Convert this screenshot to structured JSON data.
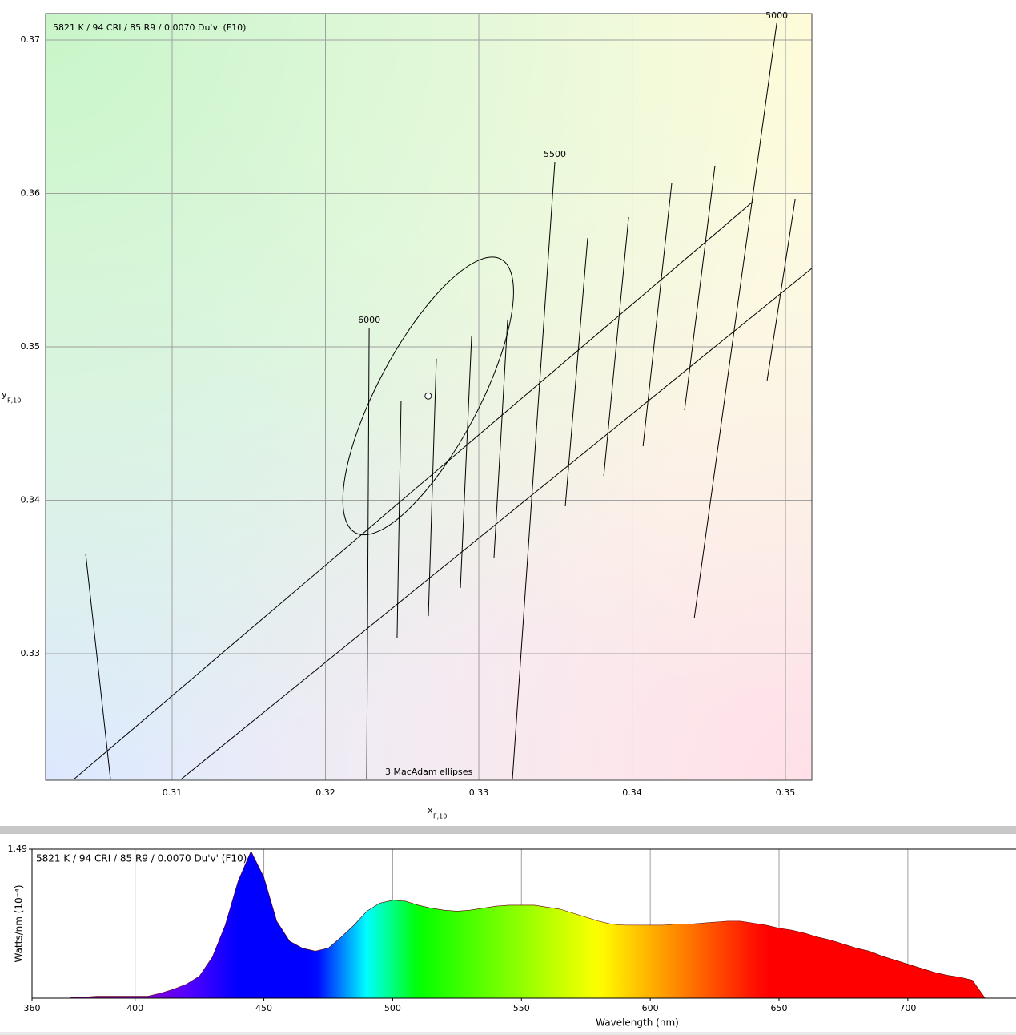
{
  "chart_data": [
    {
      "type": "chromaticity",
      "annotation": "5821 K / 94 CRI / 85 R9 / 0.0070 Du'v' (F10)",
      "ellipse_label": "3  MacAdam ellipses",
      "xlabel": "x",
      "xlabel_sub": "F,10",
      "ylabel": "y",
      "ylabel_sub": "F,10",
      "xlim": [
        0.30175,
        0.35172
      ],
      "ylim": [
        0.32175,
        0.37172
      ],
      "xticks": [
        0.31,
        0.32,
        0.33,
        0.34,
        0.35
      ],
      "yticks": [
        0.33,
        0.34,
        0.35,
        0.36,
        0.37
      ],
      "grid": true,
      "point": {
        "x": 0.3267,
        "y": 0.3468
      },
      "ellipse": {
        "cx": 0.3267,
        "cy": 0.3468,
        "rx": 0.0101,
        "ry": 0.0033,
        "angle": 62
      },
      "isotherms": [
        {
          "x": [
            0.30436,
            0.30598
          ],
          "y": [
            0.33653,
            0.3218
          ]
        },
        {
          "label": "6000",
          "x": [
            0.32285,
            0.32269
          ],
          "y": [
            0.35125,
            0.3218
          ]
        },
        {
          "x": [
            0.32493,
            0.32467
          ],
          "y": [
            0.34645,
            0.33104
          ]
        },
        {
          "x": [
            0.32723,
            0.32671
          ],
          "y": [
            0.34922,
            0.33245
          ]
        },
        {
          "x": [
            0.32953,
            0.3288
          ],
          "y": [
            0.35068,
            0.33428
          ]
        },
        {
          "x": [
            0.33188,
            0.33099
          ],
          "y": [
            0.35178,
            0.33627
          ]
        },
        {
          "label": "5500",
          "x": [
            0.33496,
            0.33219
          ],
          "y": [
            0.36206,
            0.3218
          ]
        },
        {
          "x": [
            0.3371,
            0.33564
          ],
          "y": [
            0.3571,
            0.33961
          ]
        },
        {
          "x": [
            0.33977,
            0.33815
          ],
          "y": [
            0.35846,
            0.34159
          ]
        },
        {
          "x": [
            0.34258,
            0.34071
          ],
          "y": [
            0.36065,
            0.34352
          ]
        },
        {
          "x": [
            0.3454,
            0.34342
          ],
          "y": [
            0.3618,
            0.34587
          ]
        },
        {
          "label": "5000",
          "x": [
            0.34943,
            0.34405
          ],
          "y": [
            0.3711,
            0.3323
          ]
        },
        {
          "x": [
            0.35063,
            0.3488
          ],
          "y": [
            0.35961,
            0.34781
          ]
        }
      ],
      "duv_lines": [
        {
          "x": [
            0.30358,
            0.34786
          ],
          "y": [
            0.3218,
            0.35945
          ]
        },
        {
          "x": [
            0.31057,
            0.35172
          ],
          "y": [
            0.3218,
            0.35512
          ]
        }
      ]
    },
    {
      "type": "spectrum",
      "annotation": "5821 K / 94 CRI / 85 R9 / 0.0070 Du'v' (F10)",
      "xlabel": "Wavelength (nm)",
      "ylabel": "Watts/nm (10⁻⁴)",
      "xlim": [
        360,
        742
      ],
      "ylim": [
        0,
        1.49
      ],
      "xticks": [
        360,
        400,
        450,
        500,
        550,
        600,
        650,
        700
      ],
      "yticks": [
        1.49
      ],
      "grid": true,
      "x": [
        375,
        380,
        385,
        390,
        395,
        400,
        405,
        410,
        415,
        420,
        425,
        430,
        435,
        440,
        445,
        450,
        455,
        460,
        465,
        470,
        475,
        480,
        485,
        490,
        495,
        500,
        505,
        510,
        515,
        520,
        525,
        530,
        535,
        540,
        545,
        550,
        555,
        560,
        565,
        570,
        575,
        580,
        585,
        590,
        595,
        600,
        605,
        610,
        615,
        620,
        625,
        630,
        635,
        640,
        645,
        650,
        655,
        660,
        665,
        670,
        675,
        680,
        685,
        690,
        695,
        700,
        705,
        710,
        715,
        720,
        725,
        730
      ],
      "values": [
        0.01,
        0.01,
        0.02,
        0.02,
        0.02,
        0.02,
        0.02,
        0.05,
        0.09,
        0.14,
        0.22,
        0.41,
        0.73,
        1.17,
        1.47,
        1.21,
        0.77,
        0.57,
        0.5,
        0.47,
        0.5,
        0.61,
        0.73,
        0.87,
        0.95,
        0.98,
        0.97,
        0.93,
        0.9,
        0.88,
        0.87,
        0.88,
        0.9,
        0.92,
        0.93,
        0.93,
        0.93,
        0.91,
        0.89,
        0.85,
        0.81,
        0.77,
        0.74,
        0.73,
        0.73,
        0.73,
        0.73,
        0.74,
        0.74,
        0.75,
        0.76,
        0.77,
        0.77,
        0.75,
        0.73,
        0.7,
        0.68,
        0.65,
        0.61,
        0.58,
        0.54,
        0.5,
        0.47,
        0.42,
        0.38,
        0.34,
        0.3,
        0.26,
        0.23,
        0.21,
        0.18,
        0
      ]
    }
  ]
}
